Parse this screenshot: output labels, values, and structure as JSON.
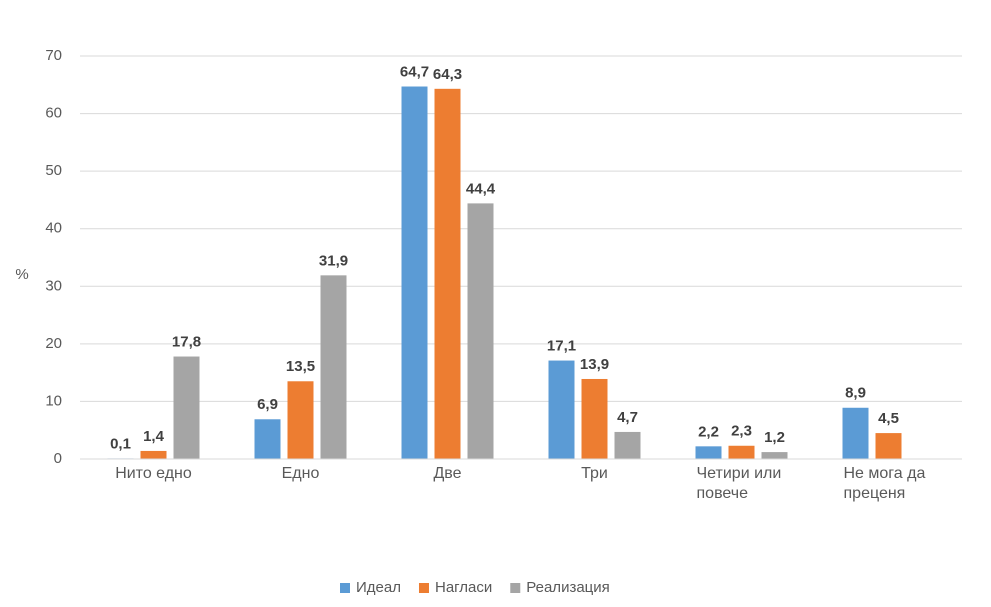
{
  "chart_data": {
    "type": "bar",
    "y_label": "%",
    "categories": [
      "Нито едно",
      "Едно",
      "Две",
      "Три",
      "Четири или повече",
      "Не мога да преценя"
    ],
    "series": [
      {
        "name": "Идеал",
        "color": "#5b9bd5",
        "values": [
          0.1,
          6.9,
          64.7,
          17.1,
          2.2,
          8.9
        ],
        "value_labels": [
          "0,1",
          "6,9",
          "64,7",
          "17,1",
          "2,2",
          "8,9"
        ]
      },
      {
        "name": "Нагласи",
        "color": "#ed7d31",
        "values": [
          1.4,
          13.5,
          64.3,
          13.9,
          2.3,
          4.5
        ],
        "value_labels": [
          "1,4",
          "13,5",
          "64,3",
          "13,9",
          "2,3",
          "4,5"
        ]
      },
      {
        "name": "Реализация",
        "color": "#a5a5a5",
        "values": [
          17.8,
          31.9,
          44.4,
          4.7,
          1.2,
          null
        ],
        "value_labels": [
          "17,8",
          "31,9",
          "44,4",
          "4,7",
          "1,2",
          null
        ]
      }
    ],
    "ylim": [
      0,
      70
    ],
    "yticks": [
      0,
      10,
      20,
      30,
      40,
      50,
      60,
      70
    ],
    "grid": true,
    "legend": "bottom"
  }
}
